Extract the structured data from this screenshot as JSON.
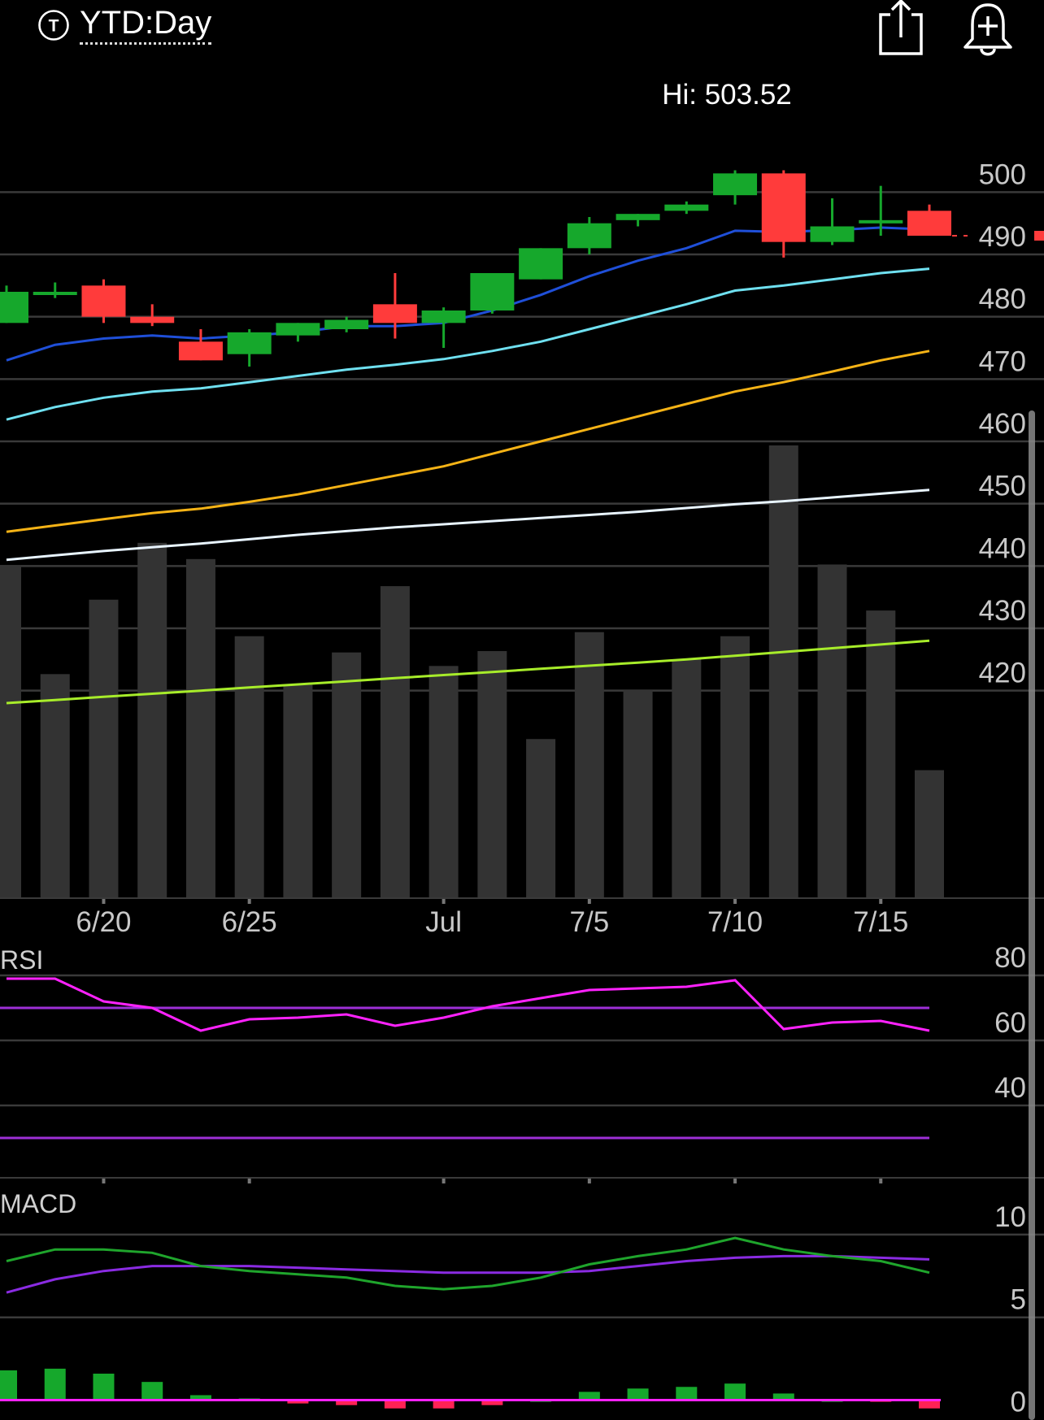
{
  "header": {
    "range_label": "YTD:Day",
    "range_icon_letter": "T",
    "range_icon": "ticker-t-circle-icon",
    "share_icon": "share-icon",
    "alert_icon": "add-alert-bell-icon"
  },
  "colors": {
    "background": "#000000",
    "gridline": "#3a3a3a",
    "axis_label": "#c8c8c8",
    "up": "#16a82c",
    "down": "#ff3b3b",
    "volume": "#333333",
    "ma_1": "#1f4fd8",
    "ma_2": "#6fe0f0",
    "ma_3": "#f5b316",
    "ma_4": "#e8f4ff",
    "ma_5": "#a7ec2a",
    "rsi": "#ff22ff",
    "rsi_bands": "#9d2fd6",
    "macd": "#1fa52c",
    "macd_signal": "#8a2be2",
    "hist_pos": "#16a82c",
    "hist_neg": "#ff2255"
  },
  "chart_data": [
    {
      "type": "candlestick",
      "high_label": "Hi: 503.52",
      "x_tick_labels": [
        "6/20",
        "6/25",
        "Jul",
        "7/5",
        "7/10",
        "7/15"
      ],
      "x_tick_index": [
        2,
        5,
        9,
        12,
        15,
        18
      ],
      "y_ticks": [
        500,
        490,
        480,
        470,
        460,
        450,
        440,
        430,
        420
      ],
      "ylim": [
        409,
        505
      ],
      "candles": [
        {
          "o": 479,
          "h": 485,
          "l": 479,
          "c": 484
        },
        {
          "o": 484,
          "h": 485.5,
          "l": 483,
          "c": 484
        },
        {
          "o": 485,
          "h": 486,
          "l": 479,
          "c": 480
        },
        {
          "o": 480,
          "h": 482,
          "l": 478.5,
          "c": 479
        },
        {
          "o": 476,
          "h": 478,
          "l": 473,
          "c": 473
        },
        {
          "o": 474,
          "h": 478,
          "l": 472,
          "c": 477.5
        },
        {
          "o": 477,
          "h": 479,
          "l": 476,
          "c": 479
        },
        {
          "o": 478,
          "h": 480,
          "l": 477.5,
          "c": 479.5
        },
        {
          "o": 482,
          "h": 487,
          "l": 476.5,
          "c": 479
        },
        {
          "o": 479,
          "h": 481.5,
          "l": 475,
          "c": 481
        },
        {
          "o": 481,
          "h": 487,
          "l": 480.5,
          "c": 487
        },
        {
          "o": 486,
          "h": 491,
          "l": 486,
          "c": 491
        },
        {
          "o": 491,
          "h": 496,
          "l": 490,
          "c": 495
        },
        {
          "o": 495.5,
          "h": 496.5,
          "l": 494.5,
          "c": 496.5
        },
        {
          "o": 497,
          "h": 498.5,
          "l": 496.5,
          "c": 498
        },
        {
          "o": 499.5,
          "h": 503.5,
          "l": 498,
          "c": 503
        },
        {
          "o": 503,
          "h": 503.5,
          "l": 489.5,
          "c": 492
        },
        {
          "o": 492,
          "h": 499,
          "l": 491.5,
          "c": 494.5
        },
        {
          "o": 495.5,
          "h": 501,
          "l": 493,
          "c": 495.5
        },
        {
          "o": 497,
          "h": 498,
          "l": 493,
          "c": 493
        }
      ],
      "last_price": 493,
      "volume": [
        24.5,
        16.5,
        22,
        26.2,
        25,
        19.3,
        15.7,
        18.1,
        23,
        17.1,
        18.2,
        11.7,
        19.6,
        15.3,
        17.6,
        19.3,
        33.4,
        24.6,
        21.2,
        9.4
      ],
      "moving_averages": [
        {
          "color_key": "ma_1",
          "values": [
            473,
            475.5,
            476.5,
            477,
            476.5,
            477,
            477.5,
            478.5,
            478.5,
            479,
            481,
            483.5,
            486.5,
            489,
            491,
            493.8,
            493.6,
            493.9,
            494.3,
            494
          ]
        },
        {
          "color_key": "ma_2",
          "values": [
            463.5,
            465.5,
            467,
            468,
            468.5,
            469.5,
            470.5,
            471.5,
            472.3,
            473.2,
            474.5,
            476,
            478,
            480,
            482,
            484.2,
            485,
            486,
            487,
            487.7
          ]
        },
        {
          "color_key": "ma_3",
          "values": [
            445.5,
            446.5,
            447.5,
            448.5,
            449.2,
            450.3,
            451.5,
            453,
            454.5,
            456,
            458,
            460,
            462,
            464,
            466,
            468,
            469.5,
            471.2,
            473,
            474.5
          ]
        },
        {
          "color_key": "ma_4",
          "values": [
            441,
            441.7,
            442.4,
            443,
            443.6,
            444.3,
            445,
            445.6,
            446.2,
            446.7,
            447.2,
            447.7,
            448.2,
            448.7,
            449.3,
            449.9,
            450.4,
            451,
            451.6,
            452.2
          ]
        },
        {
          "color_key": "ma_5",
          "values": [
            418,
            418.5,
            419,
            419.5,
            420,
            420.5,
            421,
            421.5,
            422,
            422.5,
            423,
            423.5,
            424,
            424.5,
            425,
            425.6,
            426.2,
            426.8,
            427.4,
            428
          ]
        }
      ]
    },
    {
      "type": "line",
      "title": "RSI",
      "y_ticks": [
        80,
        60,
        40
      ],
      "ylim": [
        17,
        95
      ],
      "band_upper": 70,
      "band_lower": 30,
      "values": [
        79,
        79,
        72,
        70,
        63,
        66.5,
        67,
        68,
        64.5,
        67,
        70.5,
        73,
        75.5,
        76,
        76.5,
        78.5,
        63.5,
        65.5,
        66,
        63
      ]
    },
    {
      "type": "line",
      "title": "MACD",
      "y_ticks": [
        10,
        5,
        0
      ],
      "ylim": [
        -1.2,
        12.4
      ],
      "macd": [
        8.4,
        9.1,
        9.1,
        8.9,
        8.1,
        7.8,
        7.6,
        7.4,
        6.9,
        6.7,
        6.9,
        7.4,
        8.2,
        8.7,
        9.1,
        9.8,
        9.1,
        8.7,
        8.4,
        7.7
      ],
      "signal": [
        6.5,
        7.3,
        7.8,
        8.1,
        8.1,
        8.1,
        8.0,
        7.9,
        7.8,
        7.7,
        7.7,
        7.7,
        7.8,
        8.1,
        8.4,
        8.6,
        8.7,
        8.7,
        8.6,
        8.5
      ],
      "histogram": [
        1.8,
        1.9,
        1.6,
        1.1,
        0.3,
        0.1,
        -0.2,
        -0.3,
        -0.5,
        -0.5,
        -0.3,
        0,
        0.5,
        0.7,
        0.8,
        1.0,
        0.4,
        0,
        -0.1,
        -0.5
      ]
    }
  ]
}
